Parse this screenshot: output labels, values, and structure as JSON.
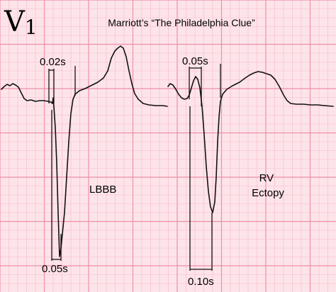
{
  "lead": {
    "letter": "V",
    "subscript": "1"
  },
  "title": "Marriott’s “The Philadelphia Clue”",
  "left_panel": {
    "top_interval": "0.02s",
    "bottom_interval": "0.05s",
    "label_lines": [
      "LBBB"
    ]
  },
  "right_panel": {
    "top_interval": "0.05s",
    "bottom_interval": "0.10s",
    "label_lines": [
      "RV",
      "Ectopy"
    ]
  },
  "colors": {
    "background": "#fde4ea",
    "grid_minor": "#f7b9c8",
    "grid_major": "#ee8fa6",
    "trace": "#111111"
  }
}
